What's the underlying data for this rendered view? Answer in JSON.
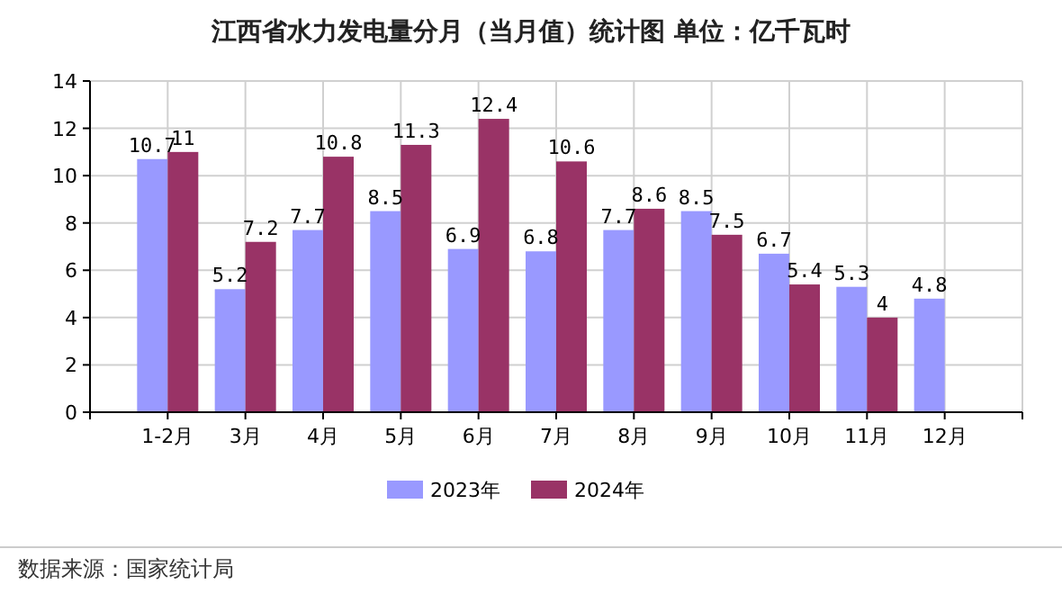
{
  "chart_data": {
    "type": "bar",
    "title": "江西省水力发电量分月（当月值）统计图  单位：亿千瓦时",
    "categories": [
      "1-2月",
      "3月",
      "4月",
      "5月",
      "6月",
      "7月",
      "8月",
      "9月",
      "10月",
      "11月",
      "12月"
    ],
    "series": [
      {
        "name": "2023年",
        "color": "#9999ff",
        "values": [
          10.7,
          5.2,
          7.7,
          8.5,
          6.9,
          6.8,
          7.7,
          8.5,
          6.7,
          5.3,
          4.8
        ]
      },
      {
        "name": "2024年",
        "color": "#993366",
        "values": [
          11,
          7.2,
          10.8,
          11.3,
          12.4,
          10.6,
          8.6,
          7.5,
          5.4,
          4,
          null
        ]
      }
    ],
    "ylim": [
      0,
      14
    ],
    "yticks": [
      0,
      2,
      4,
      6,
      8,
      10,
      12,
      14
    ],
    "grid": true,
    "legend": "bottom",
    "data_labels": true,
    "annotations": [
      "数据来源：国家统计局"
    ]
  }
}
